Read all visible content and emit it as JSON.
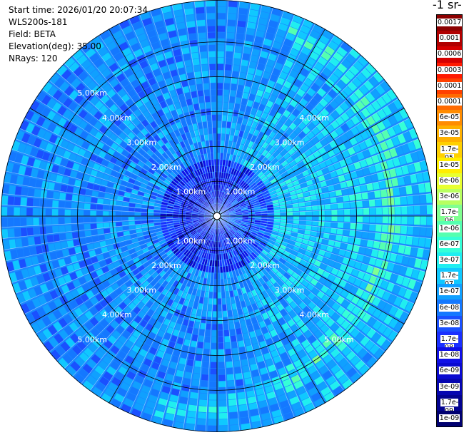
{
  "header": {
    "start_time": "Start time: 2026/01/20 20:07:34",
    "instrument": "WLS200s-181",
    "field": "Field: BETA",
    "elevation": "Elevation(deg): 35.00",
    "nrays": "NRays: 120"
  },
  "unit_label": "-1 sr-",
  "range_labels": [
    "1.00km",
    "2.00km",
    "3.00km",
    "4.00km",
    "5.00km"
  ],
  "colorbar": {
    "labels": [
      "0.0017",
      "0.001",
      "0.0006",
      "0.0003",
      "0.00017",
      "0.0001",
      "6e-05",
      "3e-05",
      "1.7e-05",
      "1e-05",
      "6e-06",
      "3e-06",
      "1.7e-06",
      "1e-06",
      "6e-07",
      "3e-07",
      "1.7e-07",
      "1e-07",
      "6e-08",
      "3e-08",
      "1.7e-08",
      "1e-08",
      "6e-09",
      "3e-09",
      "1.7e-09",
      "1e-09"
    ],
    "colors": [
      "#8b0000",
      "#b00000",
      "#d60000",
      "#ff1a00",
      "#ff4000",
      "#ff6a00",
      "#ff8c00",
      "#ffb000",
      "#ffd000",
      "#ffee00",
      "#e8ff30",
      "#b8ff60",
      "#80ff90",
      "#55ffb0",
      "#35ffd8",
      "#20eef0",
      "#10c8ff",
      "#10a0ff",
      "#1478ff",
      "#1a50ff",
      "#1a30ff",
      "#1010e6",
      "#0a0ad0",
      "#0606b0",
      "#030390",
      "#000070"
    ]
  },
  "chart_data": {
    "type": "heatmap",
    "projection": "polar PPI",
    "variable": "BETA",
    "n_rays": 120,
    "elevation_deg": 35.0,
    "range_rings_km": [
      1,
      2,
      3,
      4,
      5
    ],
    "max_range_km": 6.2,
    "color_scale": "log",
    "value_range": [
      1e-09,
      0.0017
    ]
  }
}
